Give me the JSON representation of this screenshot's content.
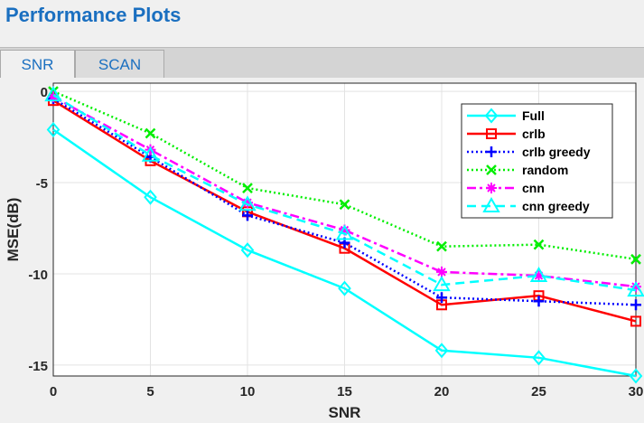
{
  "header": {
    "title": "Performance Plots"
  },
  "tabs": [
    {
      "label": "SNR",
      "selected": true
    },
    {
      "label": "SCAN",
      "selected": false
    }
  ],
  "chart_data": {
    "type": "line",
    "xlabel": "SNR",
    "ylabel": "MSE(dB)",
    "xlim": [
      0,
      30
    ],
    "ylim": [
      -15.6,
      0.45
    ],
    "xticks": [
      0,
      5,
      10,
      15,
      20,
      25,
      30
    ],
    "yticks": [
      0,
      -5,
      -10,
      -15
    ],
    "grid": true,
    "legend_position": "top-right",
    "x": [
      0,
      5,
      10,
      15,
      20,
      25,
      30
    ],
    "series": [
      {
        "name": "Full",
        "color": "#00ffff",
        "dash": "",
        "marker": "diamond",
        "values": [
          -2.1,
          -5.8,
          -8.7,
          -10.8,
          -14.2,
          -14.6,
          -15.6
        ]
      },
      {
        "name": "crlb",
        "color": "#ff0000",
        "dash": "",
        "marker": "square",
        "values": [
          -0.5,
          -3.8,
          -6.6,
          -8.6,
          -11.7,
          -11.2,
          -12.6
        ]
      },
      {
        "name": "crlb greedy",
        "color": "#0000ff",
        "dash": "2 3",
        "marker": "plus",
        "values": [
          -0.4,
          -3.6,
          -6.8,
          -8.3,
          -11.3,
          -11.5,
          -11.7
        ]
      },
      {
        "name": "random",
        "color": "#00ee00",
        "dash": "2 3",
        "marker": "x",
        "values": [
          0.0,
          -2.3,
          -5.3,
          -6.2,
          -8.5,
          -8.4,
          -9.2
        ]
      },
      {
        "name": "cnn",
        "color": "#ff00ff",
        "dash": "10 4 3 4",
        "marker": "star",
        "values": [
          -0.3,
          -3.2,
          -6.1,
          -7.6,
          -9.9,
          -10.1,
          -10.7
        ]
      },
      {
        "name": "cnn greedy",
        "color": "#00ffff",
        "dash": "10 6",
        "marker": "triangle",
        "values": [
          -0.2,
          -3.5,
          -6.2,
          -7.8,
          -10.6,
          -10.1,
          -10.9
        ]
      }
    ]
  }
}
